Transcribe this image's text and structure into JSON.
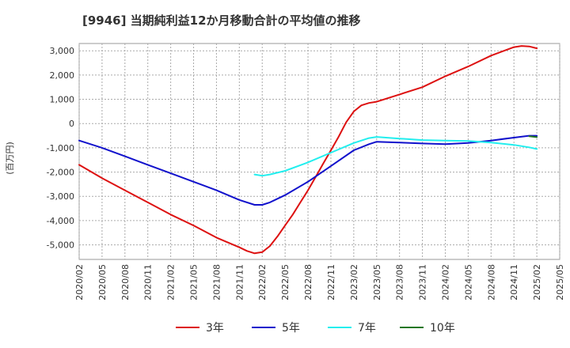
{
  "chart_data": {
    "type": "line",
    "title": "[9946]  当期純利益12か月移動合計の平均値の推移",
    "ylabel": "(百万円)",
    "xlabel": "",
    "ylim": [
      -5600,
      3300
    ],
    "yticks": [
      3000,
      2000,
      1000,
      0,
      -1000,
      -2000,
      -3000,
      -4000,
      -5000
    ],
    "ytick_labels": [
      "3,000",
      "2,000",
      "1,000",
      "0",
      "-1,000",
      "-2,000",
      "-3,000",
      "-4,000",
      "-5,000"
    ],
    "xtick_labels": [
      "2020/02",
      "2020/05",
      "2020/08",
      "2020/11",
      "2021/02",
      "2021/05",
      "2021/08",
      "2021/11",
      "2022/02",
      "2022/05",
      "2022/08",
      "2022/11",
      "2023/02",
      "2023/05",
      "2023/08",
      "2023/11",
      "2024/02",
      "2024/05",
      "2024/08",
      "2024/11",
      "2025/02",
      "2025/05"
    ],
    "grid": true,
    "legend_position": "bottom",
    "series": [
      {
        "name": "3年",
        "color": "#dd1111",
        "x": [
          "2020/02",
          "2020/05",
          "2020/08",
          "2020/11",
          "2021/02",
          "2021/05",
          "2021/08",
          "2021/11",
          "2021/12",
          "2022/01",
          "2022/02",
          "2022/03",
          "2022/04",
          "2022/05",
          "2022/06",
          "2022/07",
          "2022/08",
          "2022/09",
          "2022/10",
          "2022/11",
          "2022/12",
          "2023/01",
          "2023/02",
          "2023/03",
          "2023/04",
          "2023/05",
          "2023/08",
          "2023/11",
          "2024/02",
          "2024/05",
          "2024/08",
          "2024/11",
          "2024/12",
          "2025/01",
          "2025/02"
        ],
        "values": [
          -1700,
          -2250,
          -2750,
          -3250,
          -3750,
          -4200,
          -4700,
          -5100,
          -5250,
          -5350,
          -5300,
          -5050,
          -4650,
          -4200,
          -3750,
          -3250,
          -2750,
          -2200,
          -1650,
          -1100,
          -550,
          50,
          500,
          750,
          850,
          900,
          1200,
          1500,
          1950,
          2350,
          2800,
          3150,
          3200,
          3180,
          3100
        ]
      },
      {
        "name": "5年",
        "color": "#1111cc",
        "x": [
          "2020/02",
          "2020/05",
          "2020/08",
          "2020/11",
          "2021/02",
          "2021/05",
          "2021/08",
          "2021/11",
          "2022/01",
          "2022/02",
          "2022/03",
          "2022/05",
          "2022/08",
          "2022/11",
          "2023/02",
          "2023/04",
          "2023/05",
          "2023/08",
          "2023/11",
          "2024/02",
          "2024/05",
          "2024/08",
          "2024/11",
          "2025/01",
          "2025/02"
        ],
        "values": [
          -700,
          -1000,
          -1350,
          -1700,
          -2050,
          -2400,
          -2750,
          -3150,
          -3350,
          -3350,
          -3250,
          -2950,
          -2400,
          -1750,
          -1100,
          -850,
          -750,
          -780,
          -820,
          -850,
          -800,
          -700,
          -580,
          -500,
          -500
        ]
      },
      {
        "name": "7年",
        "color": "#22eeee",
        "x": [
          "2022/01",
          "2022/02",
          "2022/03",
          "2022/05",
          "2022/08",
          "2022/11",
          "2023/02",
          "2023/04",
          "2023/05",
          "2023/08",
          "2023/11",
          "2024/02",
          "2024/05",
          "2024/08",
          "2024/11",
          "2025/01",
          "2025/02"
        ],
        "values": [
          -2100,
          -2150,
          -2100,
          -1950,
          -1600,
          -1200,
          -800,
          -600,
          -550,
          -620,
          -680,
          -700,
          -720,
          -780,
          -880,
          -980,
          -1050
        ]
      },
      {
        "name": "10年",
        "color": "#227722",
        "x": [
          "2025/01",
          "2025/02"
        ],
        "values": [
          -520,
          -560
        ]
      }
    ]
  }
}
